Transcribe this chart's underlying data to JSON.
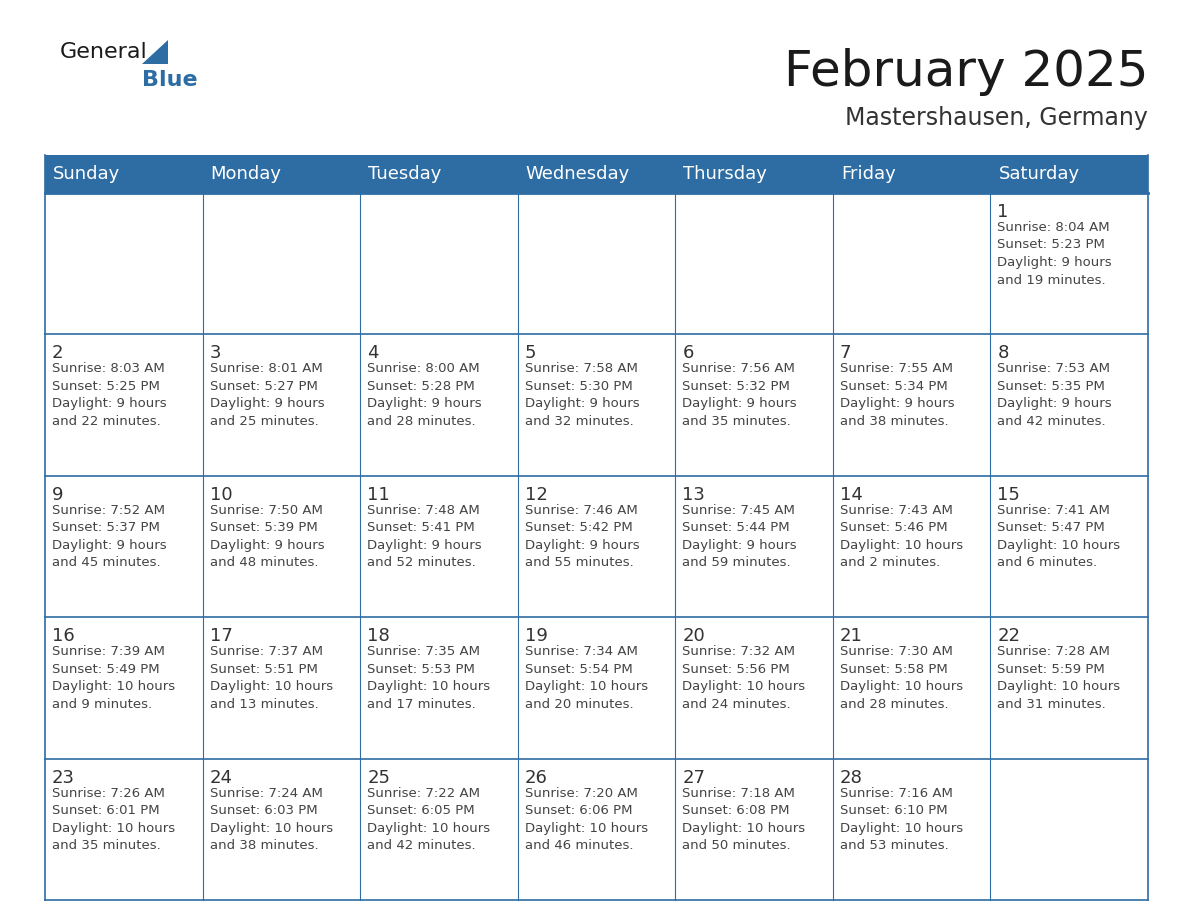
{
  "title": "February 2025",
  "subtitle": "Mastershausen, Germany",
  "header_bg": "#2E6DA4",
  "header_text": "#FFFFFF",
  "cell_bg": "#FFFFFF",
  "row_sep_color": "#2E6DA4",
  "col_sep_color": "#2E6DA4",
  "day_num_color": "#333333",
  "info_color": "#444444",
  "title_color": "#1a1a1a",
  "subtitle_color": "#333333",
  "day_headers": [
    "Sunday",
    "Monday",
    "Tuesday",
    "Wednesday",
    "Thursday",
    "Friday",
    "Saturday"
  ],
  "title_fontsize": 36,
  "subtitle_fontsize": 17,
  "header_fontsize": 13,
  "day_num_fontsize": 13,
  "cell_fontsize": 9.5,
  "weeks": [
    [
      {
        "day": null,
        "info": ""
      },
      {
        "day": null,
        "info": ""
      },
      {
        "day": null,
        "info": ""
      },
      {
        "day": null,
        "info": ""
      },
      {
        "day": null,
        "info": ""
      },
      {
        "day": null,
        "info": ""
      },
      {
        "day": 1,
        "info": "Sunrise: 8:04 AM\nSunset: 5:23 PM\nDaylight: 9 hours\nand 19 minutes."
      }
    ],
    [
      {
        "day": 2,
        "info": "Sunrise: 8:03 AM\nSunset: 5:25 PM\nDaylight: 9 hours\nand 22 minutes."
      },
      {
        "day": 3,
        "info": "Sunrise: 8:01 AM\nSunset: 5:27 PM\nDaylight: 9 hours\nand 25 minutes."
      },
      {
        "day": 4,
        "info": "Sunrise: 8:00 AM\nSunset: 5:28 PM\nDaylight: 9 hours\nand 28 minutes."
      },
      {
        "day": 5,
        "info": "Sunrise: 7:58 AM\nSunset: 5:30 PM\nDaylight: 9 hours\nand 32 minutes."
      },
      {
        "day": 6,
        "info": "Sunrise: 7:56 AM\nSunset: 5:32 PM\nDaylight: 9 hours\nand 35 minutes."
      },
      {
        "day": 7,
        "info": "Sunrise: 7:55 AM\nSunset: 5:34 PM\nDaylight: 9 hours\nand 38 minutes."
      },
      {
        "day": 8,
        "info": "Sunrise: 7:53 AM\nSunset: 5:35 PM\nDaylight: 9 hours\nand 42 minutes."
      }
    ],
    [
      {
        "day": 9,
        "info": "Sunrise: 7:52 AM\nSunset: 5:37 PM\nDaylight: 9 hours\nand 45 minutes."
      },
      {
        "day": 10,
        "info": "Sunrise: 7:50 AM\nSunset: 5:39 PM\nDaylight: 9 hours\nand 48 minutes."
      },
      {
        "day": 11,
        "info": "Sunrise: 7:48 AM\nSunset: 5:41 PM\nDaylight: 9 hours\nand 52 minutes."
      },
      {
        "day": 12,
        "info": "Sunrise: 7:46 AM\nSunset: 5:42 PM\nDaylight: 9 hours\nand 55 minutes."
      },
      {
        "day": 13,
        "info": "Sunrise: 7:45 AM\nSunset: 5:44 PM\nDaylight: 9 hours\nand 59 minutes."
      },
      {
        "day": 14,
        "info": "Sunrise: 7:43 AM\nSunset: 5:46 PM\nDaylight: 10 hours\nand 2 minutes."
      },
      {
        "day": 15,
        "info": "Sunrise: 7:41 AM\nSunset: 5:47 PM\nDaylight: 10 hours\nand 6 minutes."
      }
    ],
    [
      {
        "day": 16,
        "info": "Sunrise: 7:39 AM\nSunset: 5:49 PM\nDaylight: 10 hours\nand 9 minutes."
      },
      {
        "day": 17,
        "info": "Sunrise: 7:37 AM\nSunset: 5:51 PM\nDaylight: 10 hours\nand 13 minutes."
      },
      {
        "day": 18,
        "info": "Sunrise: 7:35 AM\nSunset: 5:53 PM\nDaylight: 10 hours\nand 17 minutes."
      },
      {
        "day": 19,
        "info": "Sunrise: 7:34 AM\nSunset: 5:54 PM\nDaylight: 10 hours\nand 20 minutes."
      },
      {
        "day": 20,
        "info": "Sunrise: 7:32 AM\nSunset: 5:56 PM\nDaylight: 10 hours\nand 24 minutes."
      },
      {
        "day": 21,
        "info": "Sunrise: 7:30 AM\nSunset: 5:58 PM\nDaylight: 10 hours\nand 28 minutes."
      },
      {
        "day": 22,
        "info": "Sunrise: 7:28 AM\nSunset: 5:59 PM\nDaylight: 10 hours\nand 31 minutes."
      }
    ],
    [
      {
        "day": 23,
        "info": "Sunrise: 7:26 AM\nSunset: 6:01 PM\nDaylight: 10 hours\nand 35 minutes."
      },
      {
        "day": 24,
        "info": "Sunrise: 7:24 AM\nSunset: 6:03 PM\nDaylight: 10 hours\nand 38 minutes."
      },
      {
        "day": 25,
        "info": "Sunrise: 7:22 AM\nSunset: 6:05 PM\nDaylight: 10 hours\nand 42 minutes."
      },
      {
        "day": 26,
        "info": "Sunrise: 7:20 AM\nSunset: 6:06 PM\nDaylight: 10 hours\nand 46 minutes."
      },
      {
        "day": 27,
        "info": "Sunrise: 7:18 AM\nSunset: 6:08 PM\nDaylight: 10 hours\nand 50 minutes."
      },
      {
        "day": 28,
        "info": "Sunrise: 7:16 AM\nSunset: 6:10 PM\nDaylight: 10 hours\nand 53 minutes."
      },
      {
        "day": null,
        "info": ""
      }
    ]
  ]
}
